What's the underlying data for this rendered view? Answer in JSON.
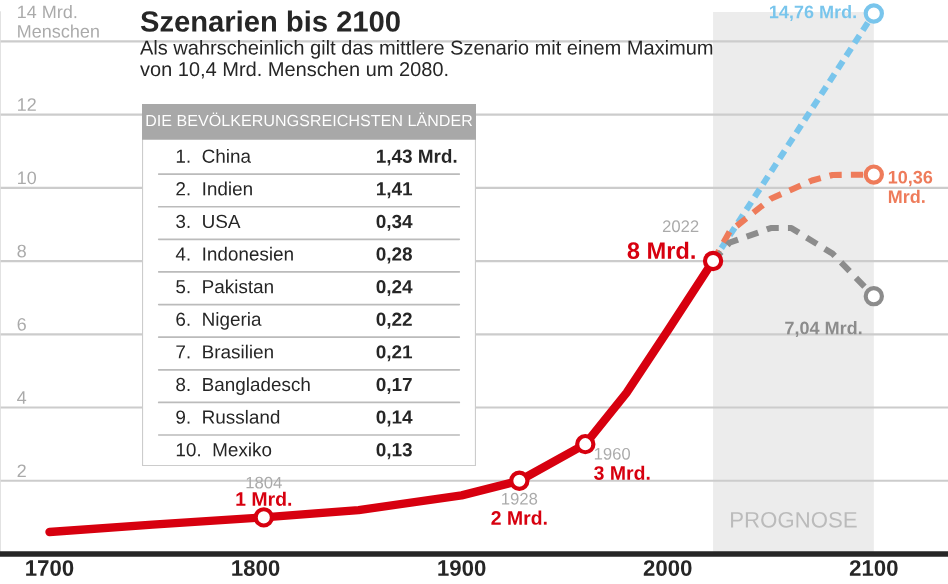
{
  "chart_data": [
    {
      "type": "line",
      "title": "Szenarien bis 2100",
      "subtitle": "Als wahrscheinlich gilt das mittlere Szenario mit einem Maximum von 10,4 Mrd. Menschen um 2080.",
      "xlim": [
        1676,
        2136
      ],
      "xticks": [
        1700,
        1800,
        1900,
        2000,
        2100
      ],
      "ylim": [
        0,
        14.8
      ],
      "yticks": [
        {
          "value": 0,
          "label": null
        },
        2,
        4,
        6,
        8,
        10,
        12,
        {
          "value": 14,
          "label": "14 Mrd.\nMenschen"
        }
      ],
      "grid": "y",
      "tick_labels": "xy",
      "series": [
        {
          "color": "#d7000f",
          "line_style": "solid",
          "x": [
            1700,
            1750,
            1804,
            1850,
            1900,
            1928,
            1960,
            1980,
            2000,
            2022
          ],
          "values": [
            0.6,
            0.8,
            1,
            1.2,
            1.6,
            2,
            3,
            4.4,
            6.1,
            8
          ]
        },
        {
          "color": "#79c5ec",
          "line_style": "dotted",
          "x": [
            2022,
            2100
          ],
          "values": [
            8,
            14.76
          ]
        },
        {
          "color": "#ee7b5a",
          "line_style": "dashed",
          "x": [
            2022,
            2030,
            2050,
            2070,
            2080,
            2100
          ],
          "values": [
            8,
            8.8,
            9.7,
            10.2,
            10.35,
            10.36
          ]
        },
        {
          "color": "#8c8c8c",
          "line_style": "dashed",
          "x": [
            2022,
            2030,
            2050,
            2060,
            2080,
            2100
          ],
          "values": [
            8,
            8.5,
            8.9,
            8.9,
            8.2,
            7.04
          ]
        },
        {
          "type": "scatter",
          "color": "#d7000f",
          "marker": "circle",
          "x": [
            1804,
            1928,
            1960,
            2022
          ],
          "values": [
            1,
            2,
            3,
            8
          ]
        },
        {
          "type": "scatter",
          "color": "#79c5ec",
          "marker": "circle",
          "x": [
            2100
          ],
          "values": [
            14.76
          ]
        },
        {
          "type": "scatter",
          "color": "#ee7b5a",
          "marker": "circle",
          "x": [
            2100
          ],
          "values": [
            10.36
          ]
        },
        {
          "type": "scatter",
          "color": "#8c8c8c",
          "marker": "circle",
          "x": [
            2100
          ],
          "values": [
            7.04
          ]
        }
      ],
      "bands": [
        {
          "axis": "x",
          "from": 2022,
          "to": 2100,
          "label": "PROGNOSE",
          "color": "#ececec"
        }
      ],
      "annotations": [
        {
          "text": "1804",
          "x": 1804,
          "y": 1
        },
        {
          "text": "1 Mrd.",
          "x": 1804,
          "y": 1
        },
        {
          "text": "1928",
          "x": 1928,
          "y": 2
        },
        {
          "text": "2 Mrd.",
          "x": 1928,
          "y": 2
        },
        {
          "text": "1960",
          "x": 1960,
          "y": 3
        },
        {
          "text": "3 Mrd.",
          "x": 1960,
          "y": 3
        },
        {
          "text": "2022",
          "x": 2022,
          "y": 8
        },
        {
          "text": "8 Mrd.",
          "x": 2022,
          "y": 8
        },
        {
          "text": "14,76 Mrd.",
          "x": 2100,
          "y": 14.76
        },
        {
          "text": "10,36\nMrd.",
          "x": 2100,
          "y": 10.36
        },
        {
          "text": "7,04 Mrd.",
          "x": 2100,
          "y": 7.04
        }
      ]
    },
    {
      "type": "other",
      "title": "DIE BEVÖLKERUNGSREICHSTEN LÄNDER",
      "categories": [
        "1.  China",
        "2.  Indien",
        "3.  USA",
        "4.  Indonesien",
        "5.  Pakistan",
        "6.  Nigeria",
        "7.  Brasilien",
        "8.  Bangladesch",
        "9.  Russland",
        "10.  Mexiko"
      ],
      "value_labels": [
        "1,43 Mrd.",
        "1,41",
        "0,34",
        "0,28",
        "0,24",
        "0,22",
        "0,21",
        "0,17",
        "0,14",
        "0,13"
      ]
    }
  ]
}
